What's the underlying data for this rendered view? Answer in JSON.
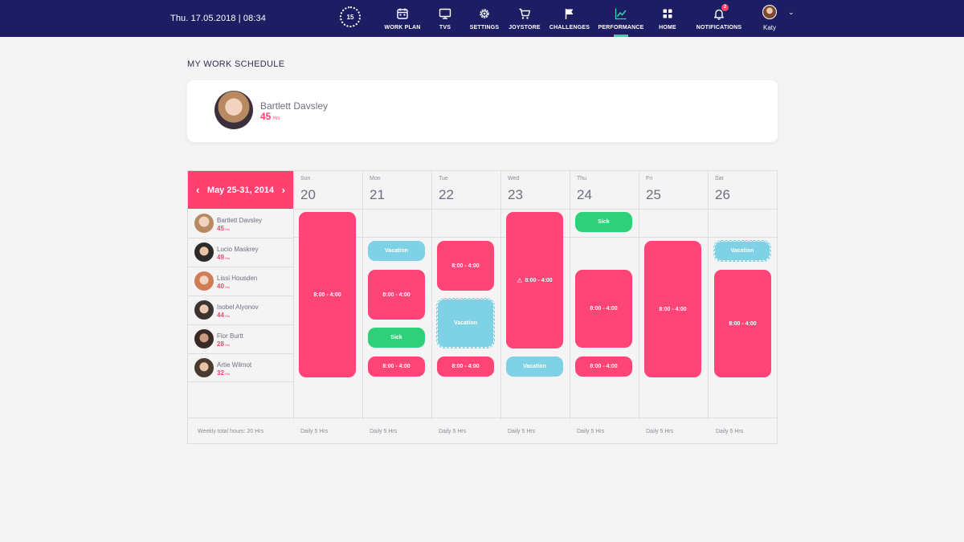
{
  "topbar": {
    "datetime": "Thu. 17.05.2018 | 08:34",
    "timer": "15",
    "nav": [
      {
        "label": "WORK PLAN",
        "icon": "calendar-icon"
      },
      {
        "label": "TVS",
        "icon": "monitor-icon"
      },
      {
        "label": "SETTINGS",
        "icon": "gear-icon"
      },
      {
        "label": "JOYSTORE",
        "icon": "cart-icon"
      },
      {
        "label": "CHALLENGES",
        "icon": "flag-icon"
      },
      {
        "label": "PERFORMANCE",
        "icon": "chart-line-icon",
        "active": true
      },
      {
        "label": "HOME",
        "icon": "grid-icon"
      },
      {
        "label": "NOTIFICATIONS",
        "icon": "bell-icon",
        "badge": "2"
      }
    ],
    "user": {
      "name": "Katy"
    }
  },
  "page": {
    "title": "MY WORK SCHEDULE"
  },
  "profile": {
    "name": "Bartlett Davsley",
    "hours": "45",
    "hours_unit": "Hrs"
  },
  "schedule": {
    "range": "May 25-31, 2014",
    "days": [
      {
        "name": "Sun",
        "num": "20"
      },
      {
        "name": "Mon",
        "num": "21"
      },
      {
        "name": "Tue",
        "num": "22"
      },
      {
        "name": "Wed",
        "num": "23"
      },
      {
        "name": "Thu",
        "num": "24"
      },
      {
        "name": "Fri",
        "num": "25"
      },
      {
        "name": "Sat",
        "num": "26"
      }
    ],
    "employees": [
      {
        "name": "Bartlett Davsley",
        "hours": "45",
        "unit": "Hrs"
      },
      {
        "name": "Lucio Maskrey",
        "hours": "49",
        "unit": "Hrs"
      },
      {
        "name": "Lissi Housden",
        "hours": "40",
        "unit": "Hrs"
      },
      {
        "name": "Isobel Alyonov",
        "hours": "44",
        "unit": "Hrs"
      },
      {
        "name": "Flor Burtt",
        "hours": "28",
        "unit": "Hrs"
      },
      {
        "name": "Artie Wilmot",
        "hours": "32",
        "unit": "Hrs"
      }
    ],
    "blocks": [
      {
        "label": "8:00 - 4:00",
        "type": "shift"
      },
      {
        "label": "Vacation",
        "type": "vacation"
      },
      {
        "label": "8:00 - 4:00",
        "type": "shift"
      },
      {
        "label": "Sick",
        "type": "sick"
      },
      {
        "label": "8:00 - 4:00",
        "type": "shift"
      },
      {
        "label": "8:00 - 4:00",
        "type": "shift"
      },
      {
        "label": "Vacation",
        "type": "vacation"
      },
      {
        "label": "8:00 - 4:00",
        "type": "shift"
      },
      {
        "label": "8:00 - 4:00",
        "type": "shift"
      },
      {
        "label": "Vacation",
        "type": "vacation"
      },
      {
        "label": "Sick",
        "type": "sick"
      },
      {
        "label": "8:00 - 4:00",
        "type": "shift"
      },
      {
        "label": "8:00 - 4:00",
        "type": "shift"
      },
      {
        "label": "8:00 - 4:00",
        "type": "shift"
      },
      {
        "label": "Vacation",
        "type": "vacation"
      },
      {
        "label": "8:00 - 4:00",
        "type": "shift"
      }
    ],
    "footer": {
      "weekly": "Weekly total hours: 20 Hrs",
      "daily": [
        "Daily 5 Hrs",
        "Daily 5 Hrs",
        "Daily 5 Hrs",
        "Daily 5 Hrs",
        "Daily 5 Hrs",
        "Daily 5 Hrs",
        "Daily 5 Hrs"
      ]
    }
  },
  "colors": {
    "navy": "#1c1d63",
    "pink": "#ff416f",
    "green": "#2ed07a",
    "blue": "#7fd1e6",
    "accent": "#2fd6a9"
  }
}
